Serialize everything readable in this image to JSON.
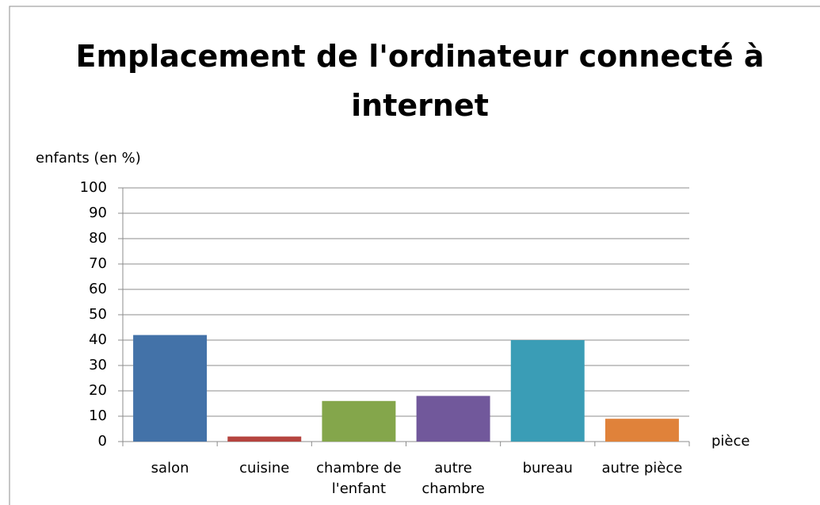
{
  "chart_data": {
    "type": "bar",
    "title": "Emplacement de l'ordinateur connecté à internet",
    "y_label": "enfants (en %)",
    "x_label": "pièce",
    "categories": [
      "salon",
      "cuisine",
      "chambre de l'enfant",
      "autre chambre",
      "bureau",
      "autre pièce"
    ],
    "values": [
      42,
      2,
      16,
      18,
      40,
      9
    ],
    "colors": [
      "#4372a8",
      "#b5443f",
      "#84a64b",
      "#71589b",
      "#3a9db6",
      "#e0823a"
    ],
    "ylim": [
      0,
      100
    ],
    "yticks": [
      0,
      10,
      20,
      30,
      40,
      50,
      60,
      70,
      80,
      90,
      100
    ],
    "grid": true
  }
}
